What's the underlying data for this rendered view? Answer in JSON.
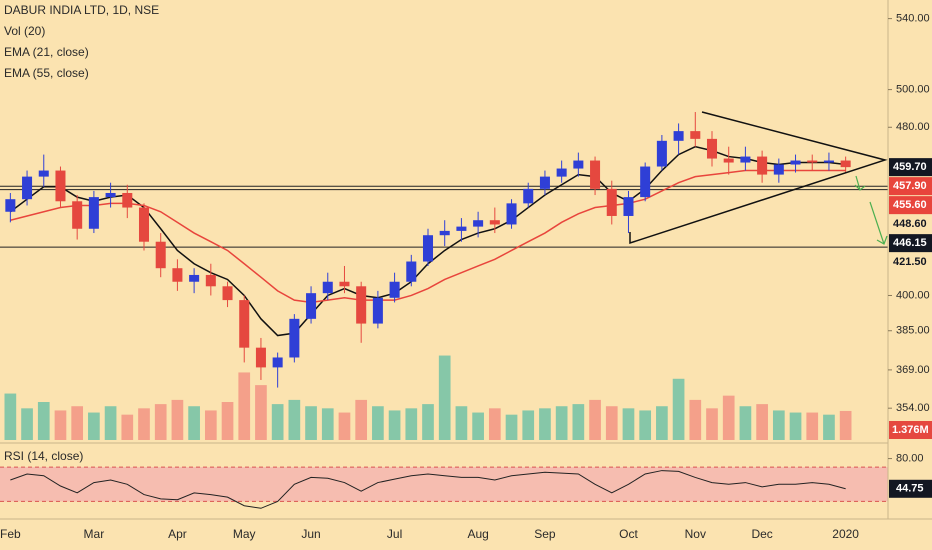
{
  "chart_data": {
    "type": "candlestick",
    "title": "DABUR INDIA LTD, 1D, NSE",
    "categories": [
      "Feb",
      null,
      null,
      null,
      null,
      "Mar",
      null,
      null,
      null,
      null,
      "Apr",
      null,
      null,
      null,
      "May",
      null,
      null,
      null,
      "Jun",
      null,
      null,
      null,
      null,
      "Jul",
      null,
      null,
      null,
      null,
      "Aug",
      null,
      null,
      null,
      "Sep",
      null,
      null,
      null,
      null,
      "Oct",
      null,
      null,
      null,
      "Nov",
      null,
      null,
      null,
      "Dec",
      null,
      null,
      null,
      null,
      "2020"
    ],
    "open": [
      438,
      444,
      455,
      458,
      443,
      430,
      445,
      447,
      440,
      424,
      412,
      406,
      409,
      404,
      398,
      378,
      370,
      374,
      390,
      401,
      406,
      404,
      388,
      399,
      406,
      415,
      427,
      429,
      431,
      434,
      432,
      442,
      449,
      455,
      459,
      463,
      449,
      436,
      445,
      460,
      473,
      478,
      474,
      464,
      462,
      465,
      456,
      461,
      463,
      462,
      463
    ],
    "high": [
      447,
      458,
      466,
      460,
      446,
      448,
      452,
      451,
      442,
      428,
      416,
      412,
      414,
      406,
      400,
      382,
      376,
      392,
      404,
      410,
      413,
      406,
      402,
      410,
      418,
      430,
      434,
      435,
      438,
      440,
      444,
      452,
      458,
      463,
      467,
      465,
      453,
      448,
      462,
      476,
      482,
      488,
      478,
      470,
      470,
      468,
      464,
      466,
      466,
      467,
      465
    ],
    "low": [
      433,
      441,
      450,
      440,
      425,
      428,
      440,
      435,
      420,
      408,
      402,
      401,
      400,
      395,
      372,
      365,
      362,
      372,
      388,
      398,
      401,
      380,
      386,
      397,
      404,
      413,
      422,
      424,
      426,
      428,
      430,
      440,
      446,
      452,
      455,
      446,
      432,
      428,
      443,
      458,
      466,
      470,
      460,
      456,
      458,
      452,
      452,
      457,
      458,
      458,
      457
    ],
    "close": [
      444,
      455,
      458,
      443,
      430,
      445,
      447,
      440,
      424,
      412,
      406,
      409,
      404,
      398,
      378,
      370,
      374,
      390,
      401,
      406,
      404,
      388,
      399,
      406,
      415,
      427,
      429,
      431,
      434,
      432,
      442,
      449,
      455,
      459,
      463,
      449,
      436,
      445,
      460,
      473,
      478,
      474,
      464,
      462,
      465,
      456,
      461,
      463,
      462,
      463,
      459.7
    ],
    "up_color": "#2f3fd6",
    "down_color": "#e5483f",
    "log_scale": true,
    "ylim": [
      342,
      551
    ],
    "yticks": [
      {
        "value": 540,
        "label": "540.00"
      },
      {
        "value": 500,
        "label": "500.00"
      },
      {
        "value": 480,
        "label": "480.00"
      },
      {
        "value": 400,
        "label": "400.00"
      },
      {
        "value": 385,
        "label": "385.00"
      },
      {
        "value": 369,
        "label": "369.00"
      },
      {
        "value": 354,
        "label": "354.00"
      }
    ],
    "series": [
      {
        "name": "EMA (21, close)",
        "color": "#111111",
        "values": [
          438,
          444,
          450,
          450,
          445,
          443,
          445,
          446,
          440,
          430,
          420,
          414,
          410,
          407,
          400,
          390,
          383,
          384,
          392,
          400,
          403,
          400,
          399,
          401,
          406,
          414,
          420,
          425,
          428,
          430,
          434,
          440,
          446,
          451,
          456,
          455,
          447,
          443,
          449,
          458,
          466,
          470,
          468,
          465,
          464,
          462,
          461,
          462,
          462,
          462,
          461
        ]
      },
      {
        "name": "EMA (55, close)",
        "color": "#e8453c",
        "values": [
          434,
          436,
          438,
          440,
          441,
          441,
          442,
          442,
          441,
          438,
          433,
          428,
          424,
          420,
          414,
          408,
          402,
          398,
          397,
          398,
          399,
          398,
          398,
          398,
          400,
          403,
          407,
          410,
          413,
          416,
          420,
          424,
          428,
          433,
          437,
          440,
          441,
          442,
          444,
          448,
          452,
          455,
          456,
          457,
          458,
          458,
          458,
          458,
          458,
          458,
          458
        ]
      }
    ],
    "volume": {
      "name": "Vol (20)",
      "values": [
        2.2,
        1.5,
        1.8,
        1.4,
        1.6,
        1.3,
        1.6,
        1.2,
        1.5,
        1.7,
        1.9,
        1.6,
        1.4,
        1.8,
        3.2,
        2.6,
        1.7,
        1.9,
        1.6,
        1.5,
        1.3,
        1.9,
        1.6,
        1.4,
        1.5,
        1.7,
        4.0,
        1.6,
        1.3,
        1.5,
        1.2,
        1.4,
        1.5,
        1.6,
        1.7,
        1.9,
        1.6,
        1.5,
        1.4,
        1.6,
        2.9,
        1.9,
        1.5,
        2.1,
        1.6,
        1.7,
        1.4,
        1.3,
        1.3,
        1.2,
        1.376
      ],
      "value_label": "1.376M",
      "ylim": [
        0,
        4.5
      ],
      "up_color": "#86c7a8",
      "down_color": "#f4a08a"
    },
    "levels": [
      450.3,
      448.6,
      421.5
    ],
    "price_labels": [
      {
        "value": 459.7,
        "label": "459.70",
        "color": "#131722",
        "text_color": "#ffffff"
      },
      {
        "value": 457.9,
        "label": "457.90",
        "color": "#e8453c",
        "text_color": "#ffffff"
      },
      {
        "value": 455.6,
        "label": "455.60",
        "color": "#e8453c",
        "text_color": "#ffffff"
      },
      {
        "value": 448.6,
        "label": "448.60",
        "color": "#fbe3b0",
        "text_color": "#131722"
      },
      {
        "value": 446.15,
        "label": "446.15",
        "color": "#131722",
        "text_color": "#ffffff"
      },
      {
        "value": 421.5,
        "label": "421.50",
        "color": "#fbe3b0",
        "text_color": "#131722"
      }
    ],
    "rsi": {
      "name": "RSI (14, close)",
      "color": "#222222",
      "values": [
        55,
        62,
        60,
        48,
        40,
        52,
        55,
        50,
        38,
        33,
        32,
        40,
        38,
        35,
        25,
        22,
        30,
        50,
        58,
        57,
        52,
        42,
        52,
        56,
        60,
        62,
        60,
        58,
        58,
        55,
        60,
        62,
        64,
        63,
        62,
        50,
        40,
        50,
        62,
        66,
        65,
        58,
        52,
        50,
        52,
        47,
        50,
        50,
        52,
        50,
        44.75
      ],
      "ylim": [
        20,
        90
      ],
      "yticks": [
        {
          "value": 80,
          "label": "80.00"
        }
      ],
      "band": [
        30,
        70
      ],
      "band_color": "#f6bdb0"
    }
  }
}
